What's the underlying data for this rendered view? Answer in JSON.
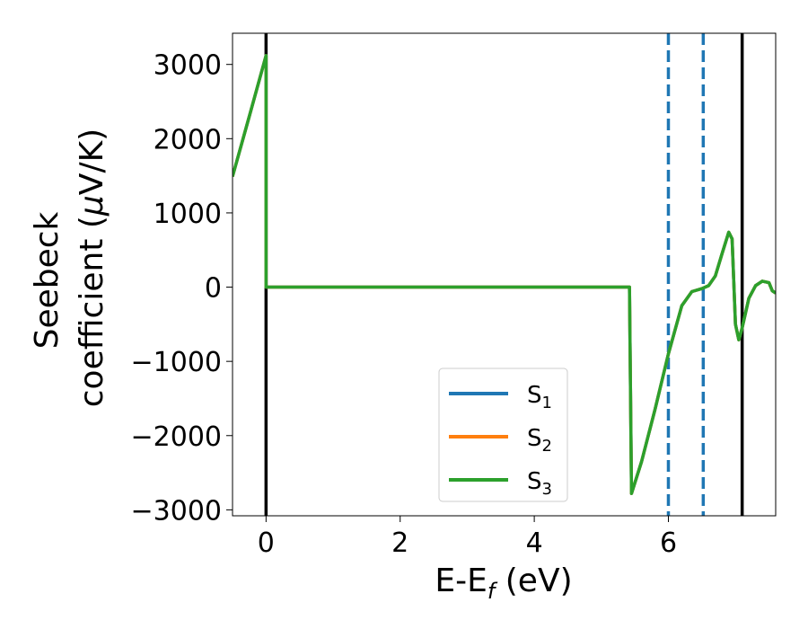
{
  "chart_data": {
    "type": "line",
    "title": "",
    "xlabel": "E-E",
    "xlabel_sub": "f",
    "xlabel_unit": " (eV)",
    "ylabel_line1": "Seebeck",
    "ylabel_line2_pre": "coefficient  (",
    "ylabel_line2_mu": "μ",
    "ylabel_line2_post": "V/K)",
    "xlim": [
      -0.5,
      7.6
    ],
    "ylim": [
      -3080,
      3420
    ],
    "xticks": [
      0,
      2,
      4,
      6
    ],
    "xtick_labels": [
      "0",
      "2",
      "4",
      "6"
    ],
    "yticks": [
      3000,
      2000,
      1000,
      0,
      -1000,
      -2000,
      -3000
    ],
    "ytick_labels": [
      "3000",
      "2000",
      "1000",
      "0",
      "−1000",
      "−2000",
      "−3000"
    ],
    "grid": false,
    "legend_position": "lower-center",
    "series": [
      {
        "name": "S",
        "sub": "1",
        "color": "#1f77b4",
        "x": [
          -0.5,
          -0.25,
          0,
          0,
          1,
          2,
          3,
          4,
          5,
          5.42,
          5.42,
          5.45,
          5.6,
          5.8,
          6.0,
          6.2,
          6.35,
          6.5,
          6.6,
          6.7,
          6.8,
          6.9,
          6.95,
          7.0,
          7.05,
          7.1,
          7.2,
          7.3,
          7.4,
          7.5,
          7.55,
          7.6
        ],
        "y": [
          1490,
          2300,
          3120,
          0,
          0,
          0,
          0,
          0,
          0,
          0,
          0,
          -2780,
          -2350,
          -1650,
          -900,
          -250,
          -60,
          -20,
          20,
          150,
          450,
          740,
          650,
          -500,
          -710,
          -550,
          -150,
          20,
          80,
          60,
          -50,
          -80
        ]
      },
      {
        "name": "S",
        "sub": "2",
        "color": "#ff7f0e",
        "x": [
          -0.5,
          -0.25,
          0,
          0,
          1,
          2,
          3,
          4,
          5,
          5.42,
          5.42,
          5.45,
          5.6,
          5.8,
          6.0,
          6.2,
          6.35,
          6.5,
          6.6,
          6.7,
          6.8,
          6.9,
          6.95,
          7.0,
          7.05,
          7.1,
          7.2,
          7.3,
          7.4,
          7.5,
          7.55,
          7.6
        ],
        "y": [
          1490,
          2300,
          3120,
          0,
          0,
          0,
          0,
          0,
          0,
          0,
          0,
          -2780,
          -2350,
          -1650,
          -900,
          -250,
          -60,
          -20,
          20,
          150,
          450,
          740,
          650,
          -500,
          -710,
          -550,
          -150,
          20,
          80,
          60,
          -50,
          -80
        ]
      },
      {
        "name": "S",
        "sub": "3",
        "color": "#2ca02c",
        "x": [
          -0.5,
          -0.25,
          0,
          0,
          1,
          2,
          3,
          4,
          5,
          5.42,
          5.42,
          5.45,
          5.6,
          5.8,
          6.0,
          6.2,
          6.35,
          6.5,
          6.6,
          6.7,
          6.8,
          6.9,
          6.95,
          7.0,
          7.05,
          7.1,
          7.2,
          7.3,
          7.4,
          7.5,
          7.55,
          7.6
        ],
        "y": [
          1490,
          2300,
          3120,
          0,
          0,
          0,
          0,
          0,
          0,
          0,
          0,
          -2780,
          -2350,
          -1650,
          -900,
          -250,
          -60,
          -20,
          20,
          150,
          450,
          740,
          650,
          -500,
          -710,
          -550,
          -150,
          20,
          80,
          60,
          -50,
          -80
        ]
      }
    ],
    "vlines": [
      {
        "x": 0,
        "style": "solid",
        "color": "#000000"
      },
      {
        "x": 7.1,
        "style": "solid",
        "color": "#000000"
      },
      {
        "x": 6.0,
        "style": "dashed",
        "color": "#1f77b4"
      },
      {
        "x": 6.52,
        "style": "dashed",
        "color": "#1f77b4"
      }
    ]
  }
}
